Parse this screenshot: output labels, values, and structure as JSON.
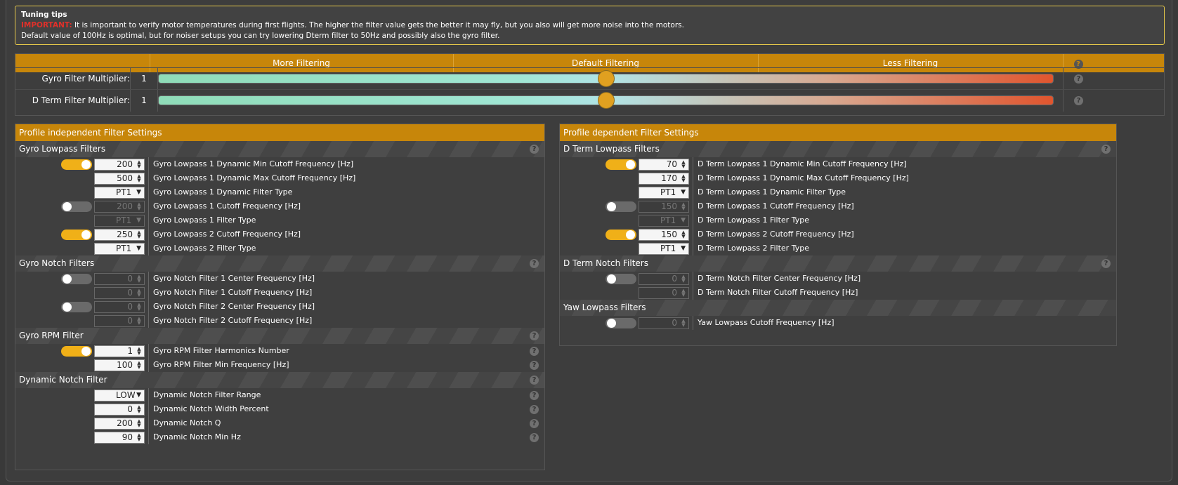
{
  "tips": {
    "title": "Tuning tips",
    "important": "IMPORTANT:",
    "line1": "It is important to verify motor temperatures during first flights. The higher the filter value gets the better it may fly, but you also will get more noise into the motors.",
    "line2": "Default value of 100Hz is optimal, but for noiser setups you can try lowering Dterm filter to 50Hz and possibly also the gyro filter."
  },
  "sliders": {
    "header": [
      "More Filtering",
      "Default Filtering",
      "Less Filtering"
    ],
    "gyro": {
      "label": "Gyro Filter Multiplier:",
      "value": "1",
      "level": 0.5
    },
    "dterm": {
      "label": "D Term Filter Multiplier:",
      "value": "1",
      "level": 0.5
    }
  },
  "left": {
    "title": "Profile independent Filter Settings",
    "gyro_lowpass": {
      "title": "Gyro Lowpass Filters",
      "rows": [
        {
          "toggle": "on",
          "kind": "num",
          "value": "200",
          "disabled": false,
          "label": "Gyro Lowpass 1 Dynamic Min Cutoff Frequency [Hz]"
        },
        {
          "toggle": "",
          "kind": "num",
          "value": "500",
          "disabled": false,
          "label": "Gyro Lowpass 1 Dynamic Max Cutoff Frequency [Hz]"
        },
        {
          "toggle": "",
          "kind": "sel",
          "value": "PT1",
          "disabled": false,
          "label": "Gyro Lowpass 1 Dynamic Filter Type"
        },
        {
          "toggle": "off",
          "kind": "num",
          "value": "200",
          "disabled": true,
          "label": "Gyro Lowpass 1 Cutoff Frequency [Hz]"
        },
        {
          "toggle": "",
          "kind": "sel",
          "value": "PT1",
          "disabled": true,
          "label": "Gyro Lowpass 1 Filter Type"
        },
        {
          "toggle": "on",
          "kind": "num",
          "value": "250",
          "disabled": false,
          "label": "Gyro Lowpass 2 Cutoff Frequency [Hz]"
        },
        {
          "toggle": "",
          "kind": "sel",
          "value": "PT1",
          "disabled": false,
          "label": "Gyro Lowpass 2 Filter Type"
        }
      ]
    },
    "gyro_notch": {
      "title": "Gyro Notch Filters",
      "rows": [
        {
          "toggle": "off",
          "kind": "num",
          "value": "0",
          "disabled": true,
          "label": "Gyro Notch Filter 1 Center Frequency [Hz]"
        },
        {
          "toggle": "",
          "kind": "num",
          "value": "0",
          "disabled": true,
          "label": "Gyro Notch Filter 1 Cutoff Frequency [Hz]"
        },
        {
          "toggle": "off",
          "kind": "num",
          "value": "0",
          "disabled": true,
          "label": "Gyro Notch Filter 2 Center Frequency [Hz]"
        },
        {
          "toggle": "",
          "kind": "num",
          "value": "0",
          "disabled": true,
          "label": "Gyro Notch Filter 2 Cutoff Frequency [Hz]"
        }
      ]
    },
    "gyro_rpm": {
      "title": "Gyro RPM Filter",
      "rows": [
        {
          "toggle": "on",
          "kind": "num",
          "value": "1",
          "disabled": false,
          "label": "Gyro RPM Filter Harmonics Number",
          "help": true
        },
        {
          "toggle": "",
          "kind": "num",
          "value": "100",
          "disabled": false,
          "label": "Gyro RPM Filter Min Frequency [Hz]",
          "help": true
        }
      ]
    },
    "dyn_notch": {
      "title": "Dynamic Notch Filter",
      "rows": [
        {
          "toggle": "",
          "kind": "sel",
          "value": "LOW",
          "disabled": false,
          "label": "Dynamic Notch Filter Range",
          "help": true
        },
        {
          "toggle": "",
          "kind": "num",
          "value": "0",
          "disabled": false,
          "label": "Dynamic Notch Width Percent",
          "help": true
        },
        {
          "toggle": "",
          "kind": "num",
          "value": "200",
          "disabled": false,
          "label": "Dynamic Notch Q",
          "help": true
        },
        {
          "toggle": "",
          "kind": "num",
          "value": "90",
          "disabled": false,
          "label": "Dynamic Notch Min Hz",
          "help": true
        }
      ]
    }
  },
  "right": {
    "title": "Profile dependent Filter Settings",
    "dterm_lowpass": {
      "title": "D Term Lowpass Filters",
      "rows": [
        {
          "toggle": "on",
          "kind": "num",
          "value": "70",
          "disabled": false,
          "label": "D Term Lowpass 1 Dynamic Min Cutoff Frequency [Hz]"
        },
        {
          "toggle": "",
          "kind": "num",
          "value": "170",
          "disabled": false,
          "label": "D Term Lowpass 1 Dynamic Max Cutoff Frequency [Hz]"
        },
        {
          "toggle": "",
          "kind": "sel",
          "value": "PT1",
          "disabled": false,
          "label": "D Term Lowpass 1 Dynamic Filter Type"
        },
        {
          "toggle": "off",
          "kind": "num",
          "value": "150",
          "disabled": true,
          "label": "D Term Lowpass 1 Cutoff Frequency [Hz]"
        },
        {
          "toggle": "",
          "kind": "sel",
          "value": "PT1",
          "disabled": true,
          "label": "D Term Lowpass 1 Filter Type"
        },
        {
          "toggle": "on",
          "kind": "num",
          "value": "150",
          "disabled": false,
          "label": "D Term Lowpass 2 Cutoff Frequency [Hz]"
        },
        {
          "toggle": "",
          "kind": "sel",
          "value": "PT1",
          "disabled": false,
          "label": "D Term Lowpass 2 Filter Type"
        }
      ]
    },
    "dterm_notch": {
      "title": "D Term Notch Filters",
      "rows": [
        {
          "toggle": "off",
          "kind": "num",
          "value": "0",
          "disabled": true,
          "label": "D Term Notch Filter Center Frequency [Hz]"
        },
        {
          "toggle": "",
          "kind": "num",
          "value": "0",
          "disabled": true,
          "label": "D Term Notch Filter Cutoff Frequency [Hz]"
        }
      ]
    },
    "yaw_lowpass": {
      "title": "Yaw Lowpass Filters",
      "rows": [
        {
          "toggle": "off",
          "kind": "num",
          "value": "0",
          "disabled": true,
          "label": "Yaw Lowpass Cutoff Frequency [Hz]"
        }
      ]
    }
  },
  "colors": {
    "accent": "#c7860a",
    "toggle_on": "#f0b018",
    "warning": "#e0302a"
  },
  "icons": {
    "help": "question-circle-icon",
    "spin": "spinner-arrows-icon",
    "dropdown": "dropdown-arrow-icon"
  }
}
